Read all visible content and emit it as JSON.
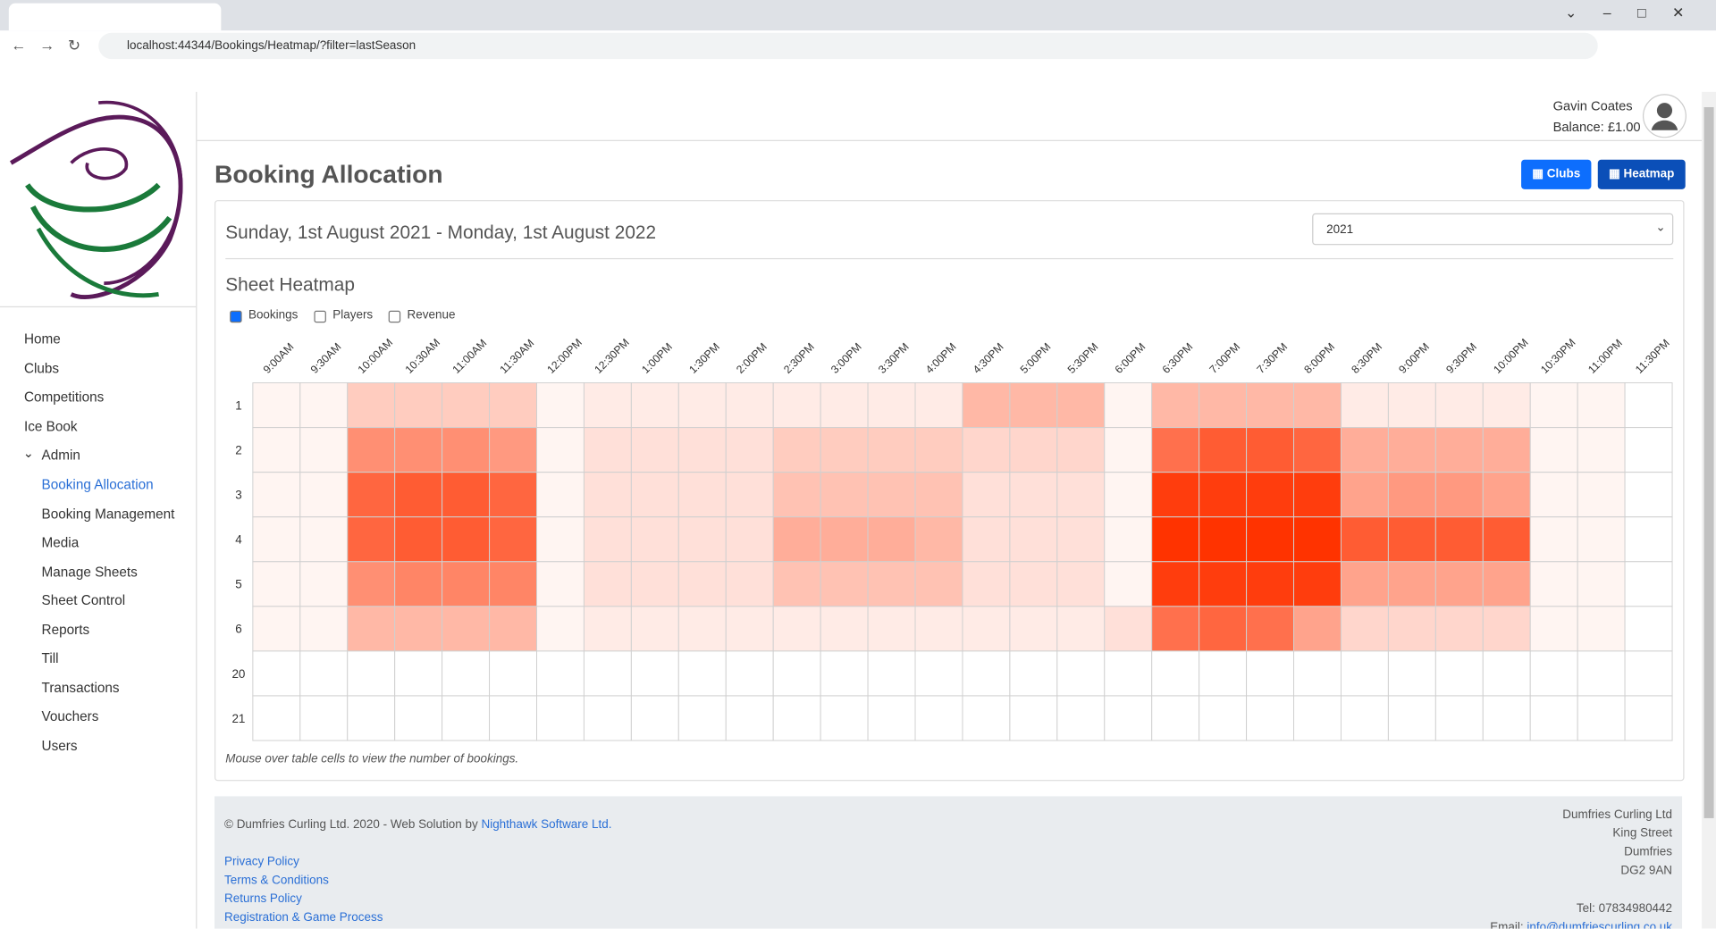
{
  "browser": {
    "url": "localhost:44344/Bookings/Heatmap/?filter=lastSeason"
  },
  "header": {
    "user": "Gavin Coates",
    "balance": "Balance: £1.00"
  },
  "nav": {
    "items": [
      "Home",
      "Clubs",
      "Competitions",
      "Ice Book",
      "Admin"
    ],
    "admin_items": [
      "Booking Allocation",
      "Booking Management",
      "Media",
      "Manage Sheets",
      "Sheet Control",
      "Reports",
      "Till",
      "Transactions",
      "Vouchers",
      "Users"
    ]
  },
  "page": {
    "title": "Booking Allocation",
    "buttons": [
      "Clubs",
      "Heatmap"
    ],
    "date_range": "Sunday, 1st August 2021  -  Monday, 1st August 2022",
    "season": "2021",
    "section": "Sheet Heatmap",
    "options": [
      "Bookings",
      "Players",
      "Revenue"
    ],
    "note": "Mouse over table cells to view the number of bookings."
  },
  "heatmap": {
    "color": "#ff3300",
    "columns": [
      "9:00AM",
      "9:30AM",
      "10:00AM",
      "10:30AM",
      "11:00AM",
      "11:30AM",
      "12:00PM",
      "12:30PM",
      "1:00PM",
      "1:30PM",
      "2:00PM",
      "2:30PM",
      "3:00PM",
      "3:30PM",
      "4:00PM",
      "4:30PM",
      "5:00PM",
      "5:30PM",
      "6:00PM",
      "6:30PM",
      "7:00PM",
      "7:30PM",
      "8:00PM",
      "8:30PM",
      "9:00PM",
      "9:30PM",
      "10:00PM",
      "10:30PM",
      "11:00PM",
      "11:30PM"
    ],
    "rows": [
      "1",
      "2",
      "3",
      "4",
      "5",
      "6",
      "20",
      "21"
    ],
    "cells": [
      [
        1,
        1,
        5,
        5,
        5,
        5,
        1,
        2,
        2,
        2,
        2,
        2,
        2,
        2,
        2,
        7,
        7,
        7,
        1,
        7,
        7,
        7,
        7,
        2,
        2,
        2,
        2,
        1,
        1,
        0
      ],
      [
        1,
        1,
        11,
        11,
        11,
        10,
        1,
        3,
        3,
        3,
        3,
        5,
        5,
        5,
        5,
        4,
        4,
        4,
        1,
        14,
        16,
        16,
        15,
        8,
        8,
        8,
        8,
        1,
        1,
        0
      ],
      [
        1,
        1,
        15,
        16,
        16,
        15,
        1,
        3,
        3,
        3,
        3,
        6,
        6,
        6,
        6,
        3,
        3,
        3,
        1,
        19,
        19,
        19,
        19,
        9,
        10,
        10,
        9,
        1,
        1,
        0
      ],
      [
        1,
        1,
        15,
        16,
        16,
        15,
        1,
        3,
        3,
        3,
        3,
        8,
        8,
        8,
        7,
        3,
        3,
        3,
        1,
        20,
        20,
        20,
        20,
        16,
        16,
        16,
        16,
        1,
        1,
        0
      ],
      [
        1,
        1,
        11,
        12,
        12,
        12,
        1,
        3,
        3,
        3,
        3,
        6,
        6,
        6,
        6,
        3,
        3,
        3,
        1,
        19,
        19,
        19,
        19,
        9,
        9,
        9,
        9,
        1,
        1,
        0
      ],
      [
        1,
        1,
        7,
        7,
        7,
        7,
        1,
        2,
        2,
        2,
        2,
        2,
        2,
        2,
        2,
        2,
        2,
        2,
        3,
        14,
        15,
        14,
        9,
        4,
        4,
        4,
        4,
        1,
        1,
        0
      ],
      [
        0,
        0,
        0,
        0,
        0,
        0,
        0,
        0,
        0,
        0,
        0,
        0,
        0,
        0,
        0,
        0,
        0,
        0,
        0,
        0,
        0,
        0,
        0,
        0,
        0,
        0,
        0,
        0,
        0,
        0
      ],
      [
        0,
        0,
        0,
        0,
        0,
        0,
        0,
        0,
        0,
        0,
        0,
        0,
        0,
        0,
        0,
        0,
        0,
        0,
        0,
        0,
        0,
        0,
        0,
        0,
        0,
        0,
        0,
        0,
        0,
        0
      ]
    ]
  },
  "footer": {
    "copyright": "© Dumfries Curling Ltd. 2020 - Web Solution by",
    "company": "Nighthawk Software Ltd.",
    "links": [
      "Privacy Policy",
      "Terms & Conditions",
      "Returns Policy",
      "Registration & Game Process"
    ],
    "address": [
      "Dumfries Curling Ltd",
      "King Street",
      "Dumfries",
      "DG2 9AN"
    ],
    "tel": "Tel: 07834980442",
    "email_label": "Email:",
    "email": "info@dumfriescurling.co.uk"
  }
}
